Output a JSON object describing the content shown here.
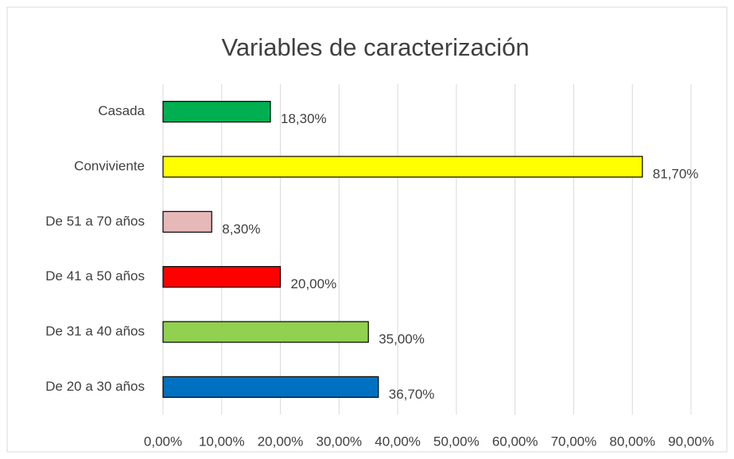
{
  "chart_data": {
    "type": "bar",
    "orientation": "horizontal",
    "title": "Variables de caracterización",
    "categories": [
      "Casada",
      "Conviviente",
      "De 51 a 70 años",
      "De 41 a 50 años",
      "De 31 a 40 años",
      "De 20 a 30 años"
    ],
    "values": [
      18.3,
      81.7,
      8.3,
      20,
      35,
      36.7
    ],
    "value_labels": [
      "18,30%",
      "81,70%",
      "8,30%",
      "20,00%",
      "35,00%",
      "36,70%"
    ],
    "colors": [
      "#00b050",
      "#ffff00",
      "#e6b9b8",
      "#ff0000",
      "#92d050",
      "#0070c0"
    ],
    "xlim": [
      0,
      90
    ],
    "xticks": [
      {
        "value": 0,
        "label": "0,00%"
      },
      {
        "value": 10,
        "label": "10,00%"
      },
      {
        "value": 20,
        "label": "20,00%"
      },
      {
        "value": 30,
        "label": "30,00%"
      },
      {
        "value": 40,
        "label": "40,00%"
      },
      {
        "value": 50,
        "label": "50,00%"
      },
      {
        "value": 60,
        "label": "60,00%"
      },
      {
        "value": 70,
        "label": "70,00%"
      },
      {
        "value": 80,
        "label": "80,00%"
      },
      {
        "value": 90,
        "label": "90,00%"
      }
    ],
    "grid": true
  }
}
